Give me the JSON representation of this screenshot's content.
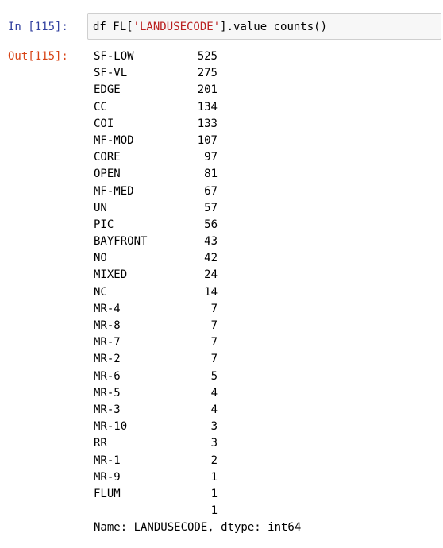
{
  "cell": {
    "in_prompt": "In [115]:",
    "out_prompt": "Out[115]:",
    "code_prefix": "df_FL[",
    "code_string": "'LANDUSECODE'",
    "code_suffix": "].value_counts()"
  },
  "output": {
    "rows": [
      {
        "label": "SF-LOW",
        "count": "525"
      },
      {
        "label": "SF-VL",
        "count": "275"
      },
      {
        "label": "EDGE",
        "count": "201"
      },
      {
        "label": "CC",
        "count": "134"
      },
      {
        "label": "COI",
        "count": "133"
      },
      {
        "label": "MF-MOD",
        "count": "107"
      },
      {
        "label": "CORE",
        "count": "97"
      },
      {
        "label": "OPEN",
        "count": "81"
      },
      {
        "label": "MF-MED",
        "count": "67"
      },
      {
        "label": "UN",
        "count": "57"
      },
      {
        "label": "PIC",
        "count": "56"
      },
      {
        "label": "BAYFRONT",
        "count": "43"
      },
      {
        "label": "NO",
        "count": "42"
      },
      {
        "label": "MIXED",
        "count": "24"
      },
      {
        "label": "NC",
        "count": "14"
      },
      {
        "label": "MR-4",
        "count": "7"
      },
      {
        "label": "MR-8",
        "count": "7"
      },
      {
        "label": "MR-7",
        "count": "7"
      },
      {
        "label": "MR-2",
        "count": "7"
      },
      {
        "label": "MR-6",
        "count": "5"
      },
      {
        "label": "MR-5",
        "count": "4"
      },
      {
        "label": "MR-3",
        "count": "4"
      },
      {
        "label": "MR-10",
        "count": "3"
      },
      {
        "label": "RR",
        "count": "3"
      },
      {
        "label": "MR-1",
        "count": "2"
      },
      {
        "label": "MR-9",
        "count": "1"
      },
      {
        "label": "FLUM",
        "count": "1"
      },
      {
        "label": "",
        "count": "1"
      }
    ],
    "footer": "Name: LANDUSECODE, dtype: int64"
  }
}
